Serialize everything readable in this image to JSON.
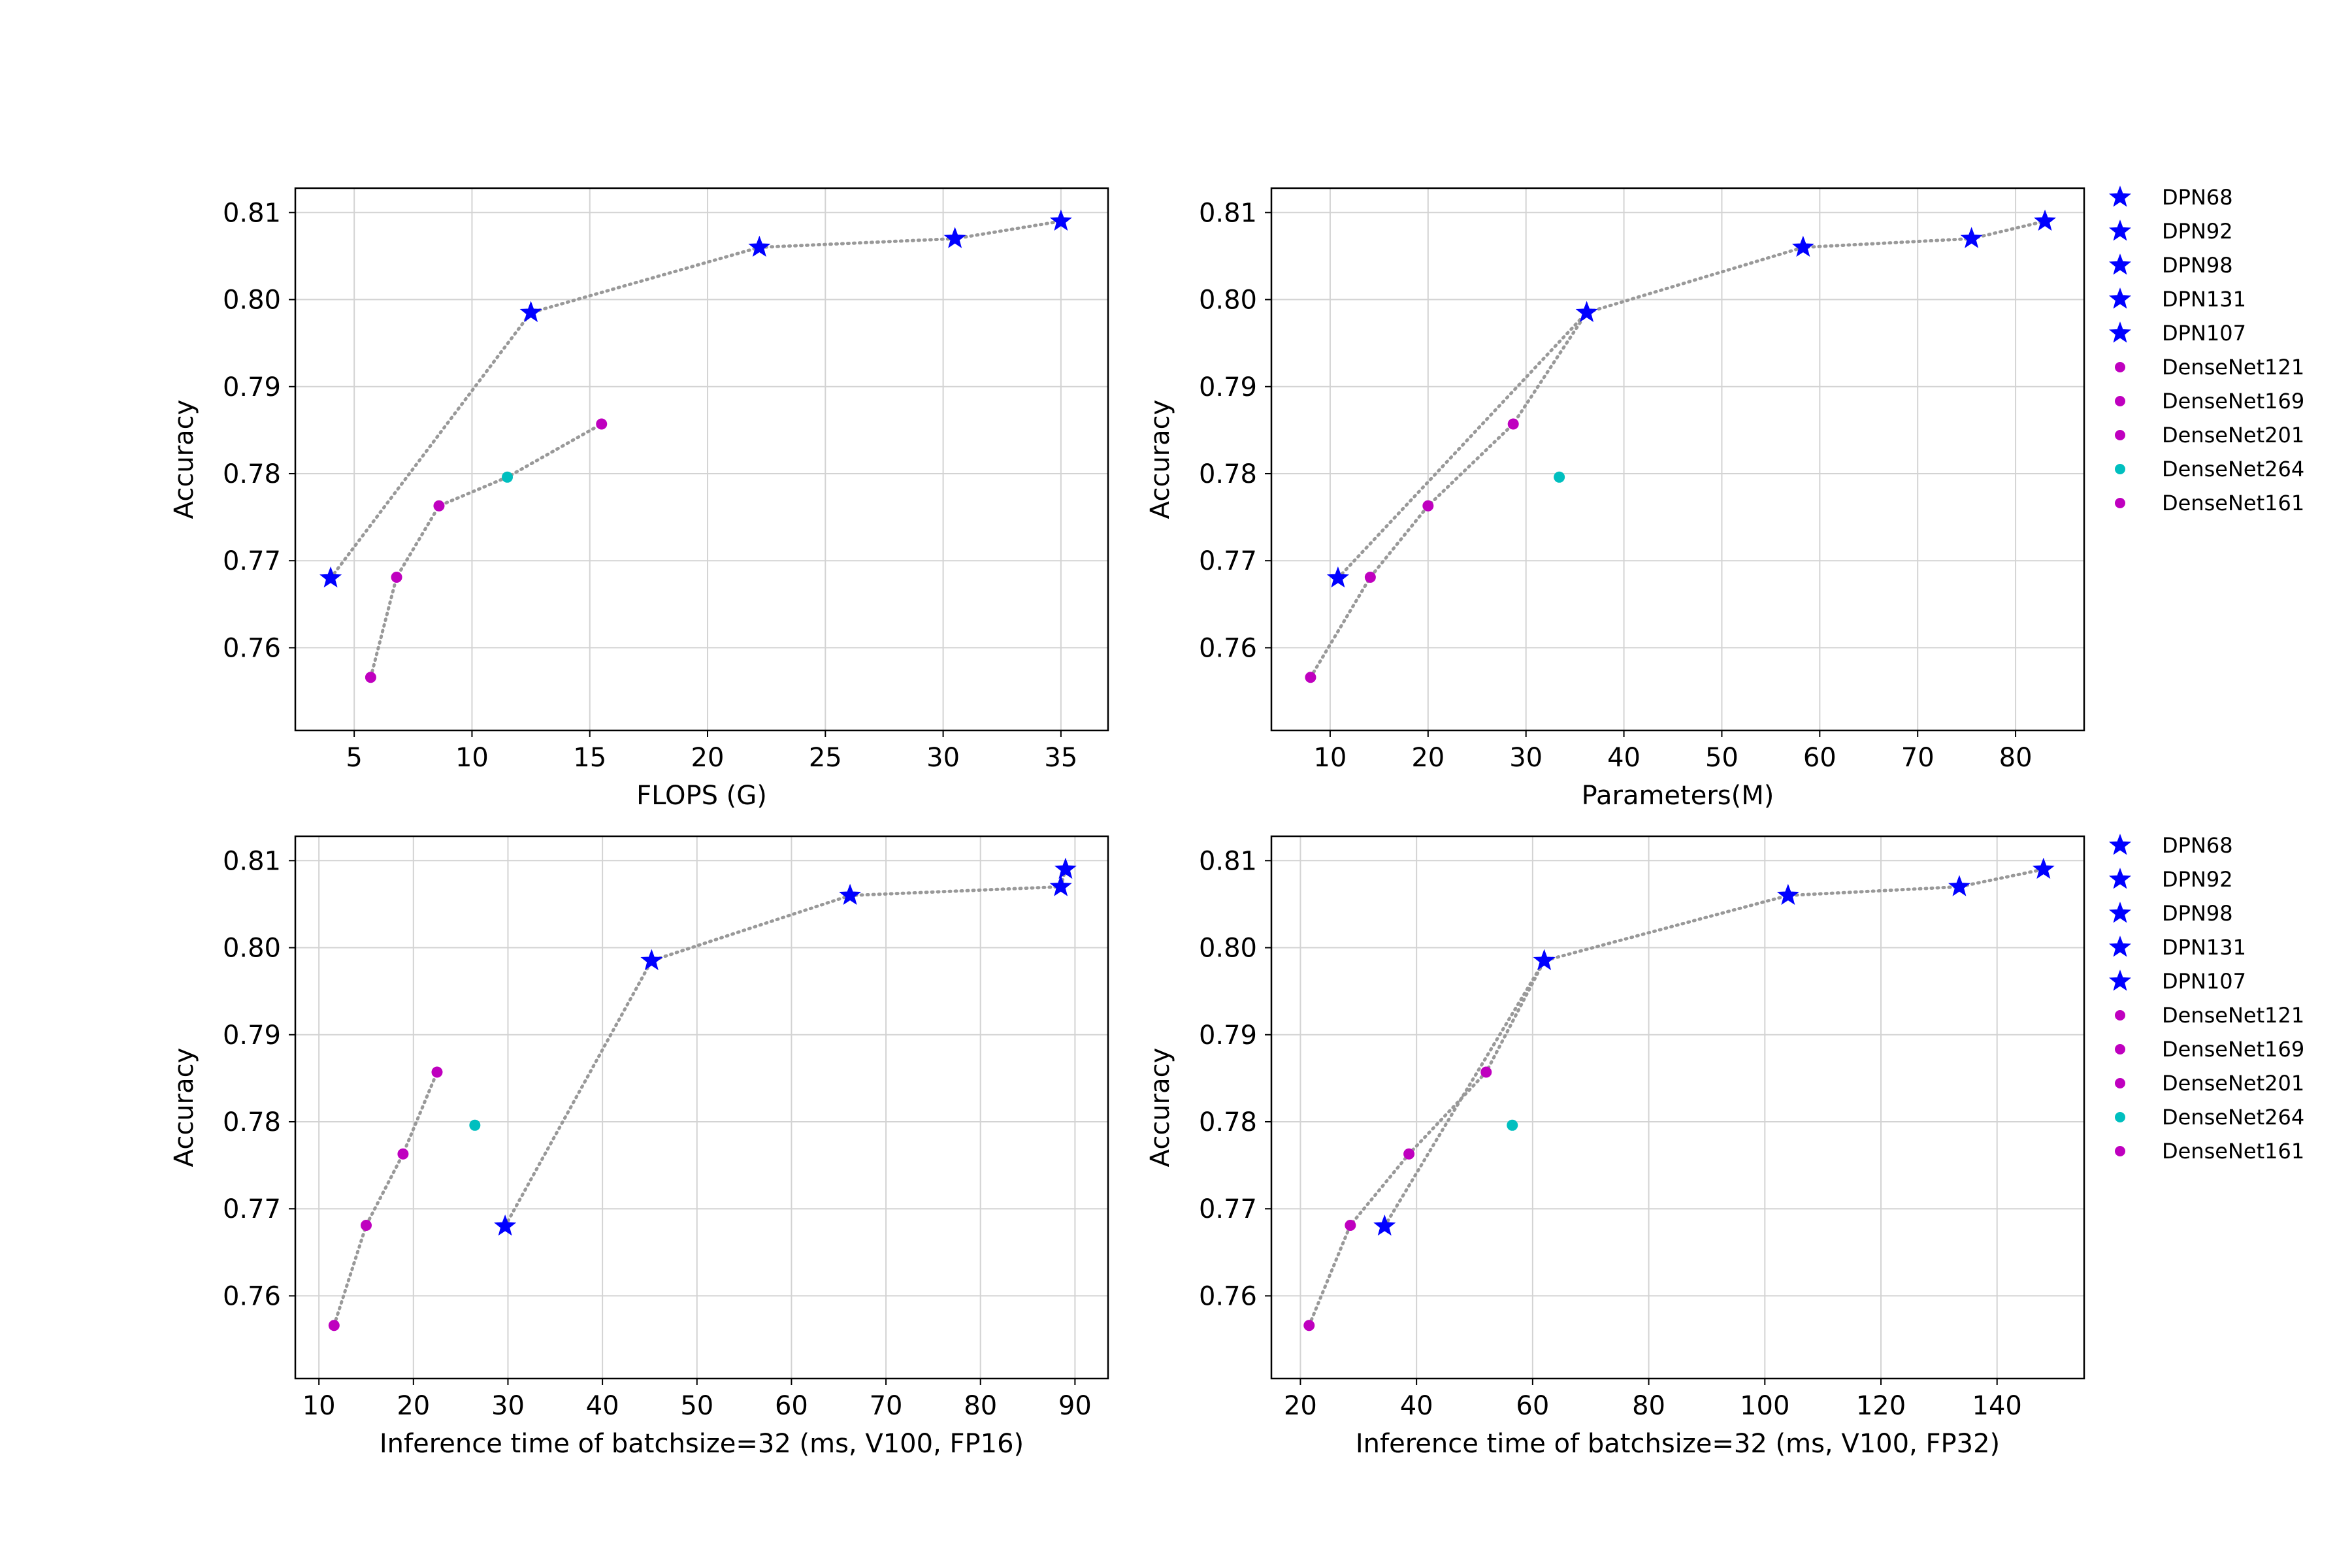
{
  "chart_data": [
    {
      "type": "scatter",
      "xlabel": "FLOPS (G)",
      "ylabel": "Accuracy",
      "xlim": [
        2.5,
        37
      ],
      "ylim": [
        0.7505,
        0.8128
      ],
      "xticks": [
        5,
        10,
        15,
        20,
        25,
        30,
        35
      ],
      "yticks": [
        0.76,
        0.77,
        0.78,
        0.79,
        0.8,
        0.81
      ],
      "grid": true,
      "legend": false,
      "series": [
        {
          "name": "DPN68",
          "marker": "star",
          "color": "#0000ff",
          "x": [
            4.0
          ],
          "y": [
            0.768
          ]
        },
        {
          "name": "DPN92",
          "marker": "star",
          "color": "#0000ff",
          "x": [
            12.5
          ],
          "y": [
            0.7985
          ]
        },
        {
          "name": "DPN98",
          "marker": "star",
          "color": "#0000ff",
          "x": [
            22.2
          ],
          "y": [
            0.806
          ]
        },
        {
          "name": "DPN131",
          "marker": "star",
          "color": "#0000ff",
          "x": [
            30.5
          ],
          "y": [
            0.807
          ]
        },
        {
          "name": "DPN107",
          "marker": "star",
          "color": "#0000ff",
          "x": [
            35.0
          ],
          "y": [
            0.809
          ]
        },
        {
          "name": "DenseNet121",
          "marker": "dot",
          "color": "#bf00bf",
          "x": [
            5.7
          ],
          "y": [
            0.7566
          ]
        },
        {
          "name": "DenseNet169",
          "marker": "dot",
          "color": "#bf00bf",
          "x": [
            6.8
          ],
          "y": [
            0.7681
          ]
        },
        {
          "name": "DenseNet201",
          "marker": "dot",
          "color": "#bf00bf",
          "x": [
            8.6
          ],
          "y": [
            0.7763
          ]
        },
        {
          "name": "DenseNet264",
          "marker": "dot",
          "color": "#00bfbf",
          "x": [
            11.5
          ],
          "y": [
            0.7796
          ]
        },
        {
          "name": "DenseNet161",
          "marker": "dot",
          "color": "#bf00bf",
          "x": [
            15.5
          ],
          "y": [
            0.7857
          ]
        }
      ],
      "lines": [
        {
          "x": [
            4.0,
            12.5,
            22.2,
            30.5,
            35.0
          ],
          "y": [
            0.768,
            0.7985,
            0.806,
            0.807,
            0.809
          ]
        },
        {
          "x": [
            5.7,
            6.8,
            8.6,
            11.5,
            15.5
          ],
          "y": [
            0.7566,
            0.7681,
            0.7763,
            0.7796,
            0.7857
          ]
        }
      ]
    },
    {
      "type": "scatter",
      "xlabel": "Parameters(M)",
      "ylabel": "Accuracy",
      "xlim": [
        4,
        87
      ],
      "ylim": [
        0.7505,
        0.8128
      ],
      "xticks": [
        10,
        20,
        30,
        40,
        50,
        60,
        70,
        80
      ],
      "yticks": [
        0.76,
        0.77,
        0.78,
        0.79,
        0.8,
        0.81
      ],
      "grid": true,
      "legend": true,
      "legend_position": "outside-right",
      "series": [
        {
          "name": "DPN68",
          "marker": "star",
          "color": "#0000ff",
          "x": [
            10.8
          ],
          "y": [
            0.768
          ]
        },
        {
          "name": "DPN92",
          "marker": "star",
          "color": "#0000ff",
          "x": [
            36.2
          ],
          "y": [
            0.7985
          ]
        },
        {
          "name": "DPN98",
          "marker": "star",
          "color": "#0000ff",
          "x": [
            58.3
          ],
          "y": [
            0.806
          ]
        },
        {
          "name": "DPN131",
          "marker": "star",
          "color": "#0000ff",
          "x": [
            75.5
          ],
          "y": [
            0.807
          ]
        },
        {
          "name": "DPN107",
          "marker": "star",
          "color": "#0000ff",
          "x": [
            83.0
          ],
          "y": [
            0.809
          ]
        },
        {
          "name": "DenseNet121",
          "marker": "dot",
          "color": "#bf00bf",
          "x": [
            8.0
          ],
          "y": [
            0.7566
          ]
        },
        {
          "name": "DenseNet169",
          "marker": "dot",
          "color": "#bf00bf",
          "x": [
            14.1
          ],
          "y": [
            0.7681
          ]
        },
        {
          "name": "DenseNet201",
          "marker": "dot",
          "color": "#bf00bf",
          "x": [
            20.0
          ],
          "y": [
            0.7763
          ]
        },
        {
          "name": "DenseNet264",
          "marker": "dot",
          "color": "#00bfbf",
          "x": [
            33.4
          ],
          "y": [
            0.7796
          ]
        },
        {
          "name": "DenseNet161",
          "marker": "dot",
          "color": "#bf00bf",
          "x": [
            28.7
          ],
          "y": [
            0.7857
          ]
        }
      ],
      "lines": [
        {
          "x": [
            10.8,
            36.2,
            58.3,
            75.5,
            83.0
          ],
          "y": [
            0.768,
            0.7985,
            0.806,
            0.807,
            0.809
          ]
        },
        {
          "x": [
            8.0,
            14.1,
            20.0,
            28.7,
            36.2
          ],
          "y": [
            0.7566,
            0.7681,
            0.7763,
            0.7857,
            0.7985
          ]
        }
      ]
    },
    {
      "type": "scatter",
      "xlabel": "Inference time of batchsize=32 (ms, V100, FP16)",
      "ylabel": "Accuracy",
      "xlim": [
        7.5,
        93.5
      ],
      "ylim": [
        0.7505,
        0.8128
      ],
      "xticks": [
        10,
        20,
        30,
        40,
        50,
        60,
        70,
        80,
        90
      ],
      "yticks": [
        0.76,
        0.77,
        0.78,
        0.79,
        0.8,
        0.81
      ],
      "grid": true,
      "legend": false,
      "series": [
        {
          "name": "DPN68",
          "marker": "star",
          "color": "#0000ff",
          "x": [
            29.7
          ],
          "y": [
            0.768
          ]
        },
        {
          "name": "DPN92",
          "marker": "star",
          "color": "#0000ff",
          "x": [
            45.2
          ],
          "y": [
            0.7985
          ]
        },
        {
          "name": "DPN98",
          "marker": "star",
          "color": "#0000ff",
          "x": [
            66.2
          ],
          "y": [
            0.806
          ]
        },
        {
          "name": "DPN131",
          "marker": "star",
          "color": "#0000ff",
          "x": [
            88.5
          ],
          "y": [
            0.807
          ]
        },
        {
          "name": "DPN107",
          "marker": "star",
          "color": "#0000ff",
          "x": [
            89.0
          ],
          "y": [
            0.809
          ]
        },
        {
          "name": "DenseNet121",
          "marker": "dot",
          "color": "#bf00bf",
          "x": [
            11.6
          ],
          "y": [
            0.7566
          ]
        },
        {
          "name": "DenseNet169",
          "marker": "dot",
          "color": "#bf00bf",
          "x": [
            15.0
          ],
          "y": [
            0.7681
          ]
        },
        {
          "name": "DenseNet201",
          "marker": "dot",
          "color": "#bf00bf",
          "x": [
            18.9
          ],
          "y": [
            0.7763
          ]
        },
        {
          "name": "DenseNet264",
          "marker": "dot",
          "color": "#00bfbf",
          "x": [
            26.5
          ],
          "y": [
            0.7796
          ]
        },
        {
          "name": "DenseNet161",
          "marker": "dot",
          "color": "#bf00bf",
          "x": [
            22.5
          ],
          "y": [
            0.7857
          ]
        }
      ],
      "lines": [
        {
          "x": [
            29.7,
            45.2,
            66.2,
            88.5,
            89.0
          ],
          "y": [
            0.768,
            0.7985,
            0.806,
            0.807,
            0.809
          ]
        },
        {
          "x": [
            11.6,
            15.0,
            18.9,
            22.5
          ],
          "y": [
            0.7566,
            0.7681,
            0.7763,
            0.7857
          ]
        }
      ]
    },
    {
      "type": "scatter",
      "xlabel": "Inference time of batchsize=32 (ms, V100, FP32)",
      "ylabel": "Accuracy",
      "xlim": [
        15,
        155
      ],
      "ylim": [
        0.7505,
        0.8128
      ],
      "xticks": [
        20,
        40,
        60,
        80,
        100,
        120,
        140
      ],
      "yticks": [
        0.76,
        0.77,
        0.78,
        0.79,
        0.8,
        0.81
      ],
      "grid": true,
      "legend": true,
      "legend_position": "outside-right",
      "series": [
        {
          "name": "DPN68",
          "marker": "star",
          "color": "#0000ff",
          "x": [
            34.5
          ],
          "y": [
            0.768
          ]
        },
        {
          "name": "DPN92",
          "marker": "star",
          "color": "#0000ff",
          "x": [
            62.0
          ],
          "y": [
            0.7985
          ]
        },
        {
          "name": "DPN98",
          "marker": "star",
          "color": "#0000ff",
          "x": [
            104.0
          ],
          "y": [
            0.806
          ]
        },
        {
          "name": "DPN131",
          "marker": "star",
          "color": "#0000ff",
          "x": [
            133.5
          ],
          "y": [
            0.807
          ]
        },
        {
          "name": "DPN107",
          "marker": "star",
          "color": "#0000ff",
          "x": [
            148.0
          ],
          "y": [
            0.809
          ]
        },
        {
          "name": "DenseNet121",
          "marker": "dot",
          "color": "#bf00bf",
          "x": [
            21.5
          ],
          "y": [
            0.7566
          ]
        },
        {
          "name": "DenseNet169",
          "marker": "dot",
          "color": "#bf00bf",
          "x": [
            28.6
          ],
          "y": [
            0.7681
          ]
        },
        {
          "name": "DenseNet201",
          "marker": "dot",
          "color": "#bf00bf",
          "x": [
            38.7
          ],
          "y": [
            0.7763
          ]
        },
        {
          "name": "DenseNet264",
          "marker": "dot",
          "color": "#00bfbf",
          "x": [
            56.5
          ],
          "y": [
            0.7796
          ]
        },
        {
          "name": "DenseNet161",
          "marker": "dot",
          "color": "#bf00bf",
          "x": [
            52.0
          ],
          "y": [
            0.7857
          ]
        }
      ],
      "lines": [
        {
          "x": [
            34.5,
            62.0,
            104.0,
            133.5,
            148.0
          ],
          "y": [
            0.768,
            0.7985,
            0.806,
            0.807,
            0.809
          ]
        },
        {
          "x": [
            21.5,
            28.6,
            38.7,
            52.0,
            62.0
          ],
          "y": [
            0.7566,
            0.7681,
            0.7763,
            0.7857,
            0.7985
          ]
        }
      ]
    }
  ],
  "colors": {
    "dpn": "#0000ff",
    "densenet": "#bf00bf",
    "densenet264": "#00bfbf",
    "connector": "#999999",
    "grid": "#d3d3d3"
  }
}
